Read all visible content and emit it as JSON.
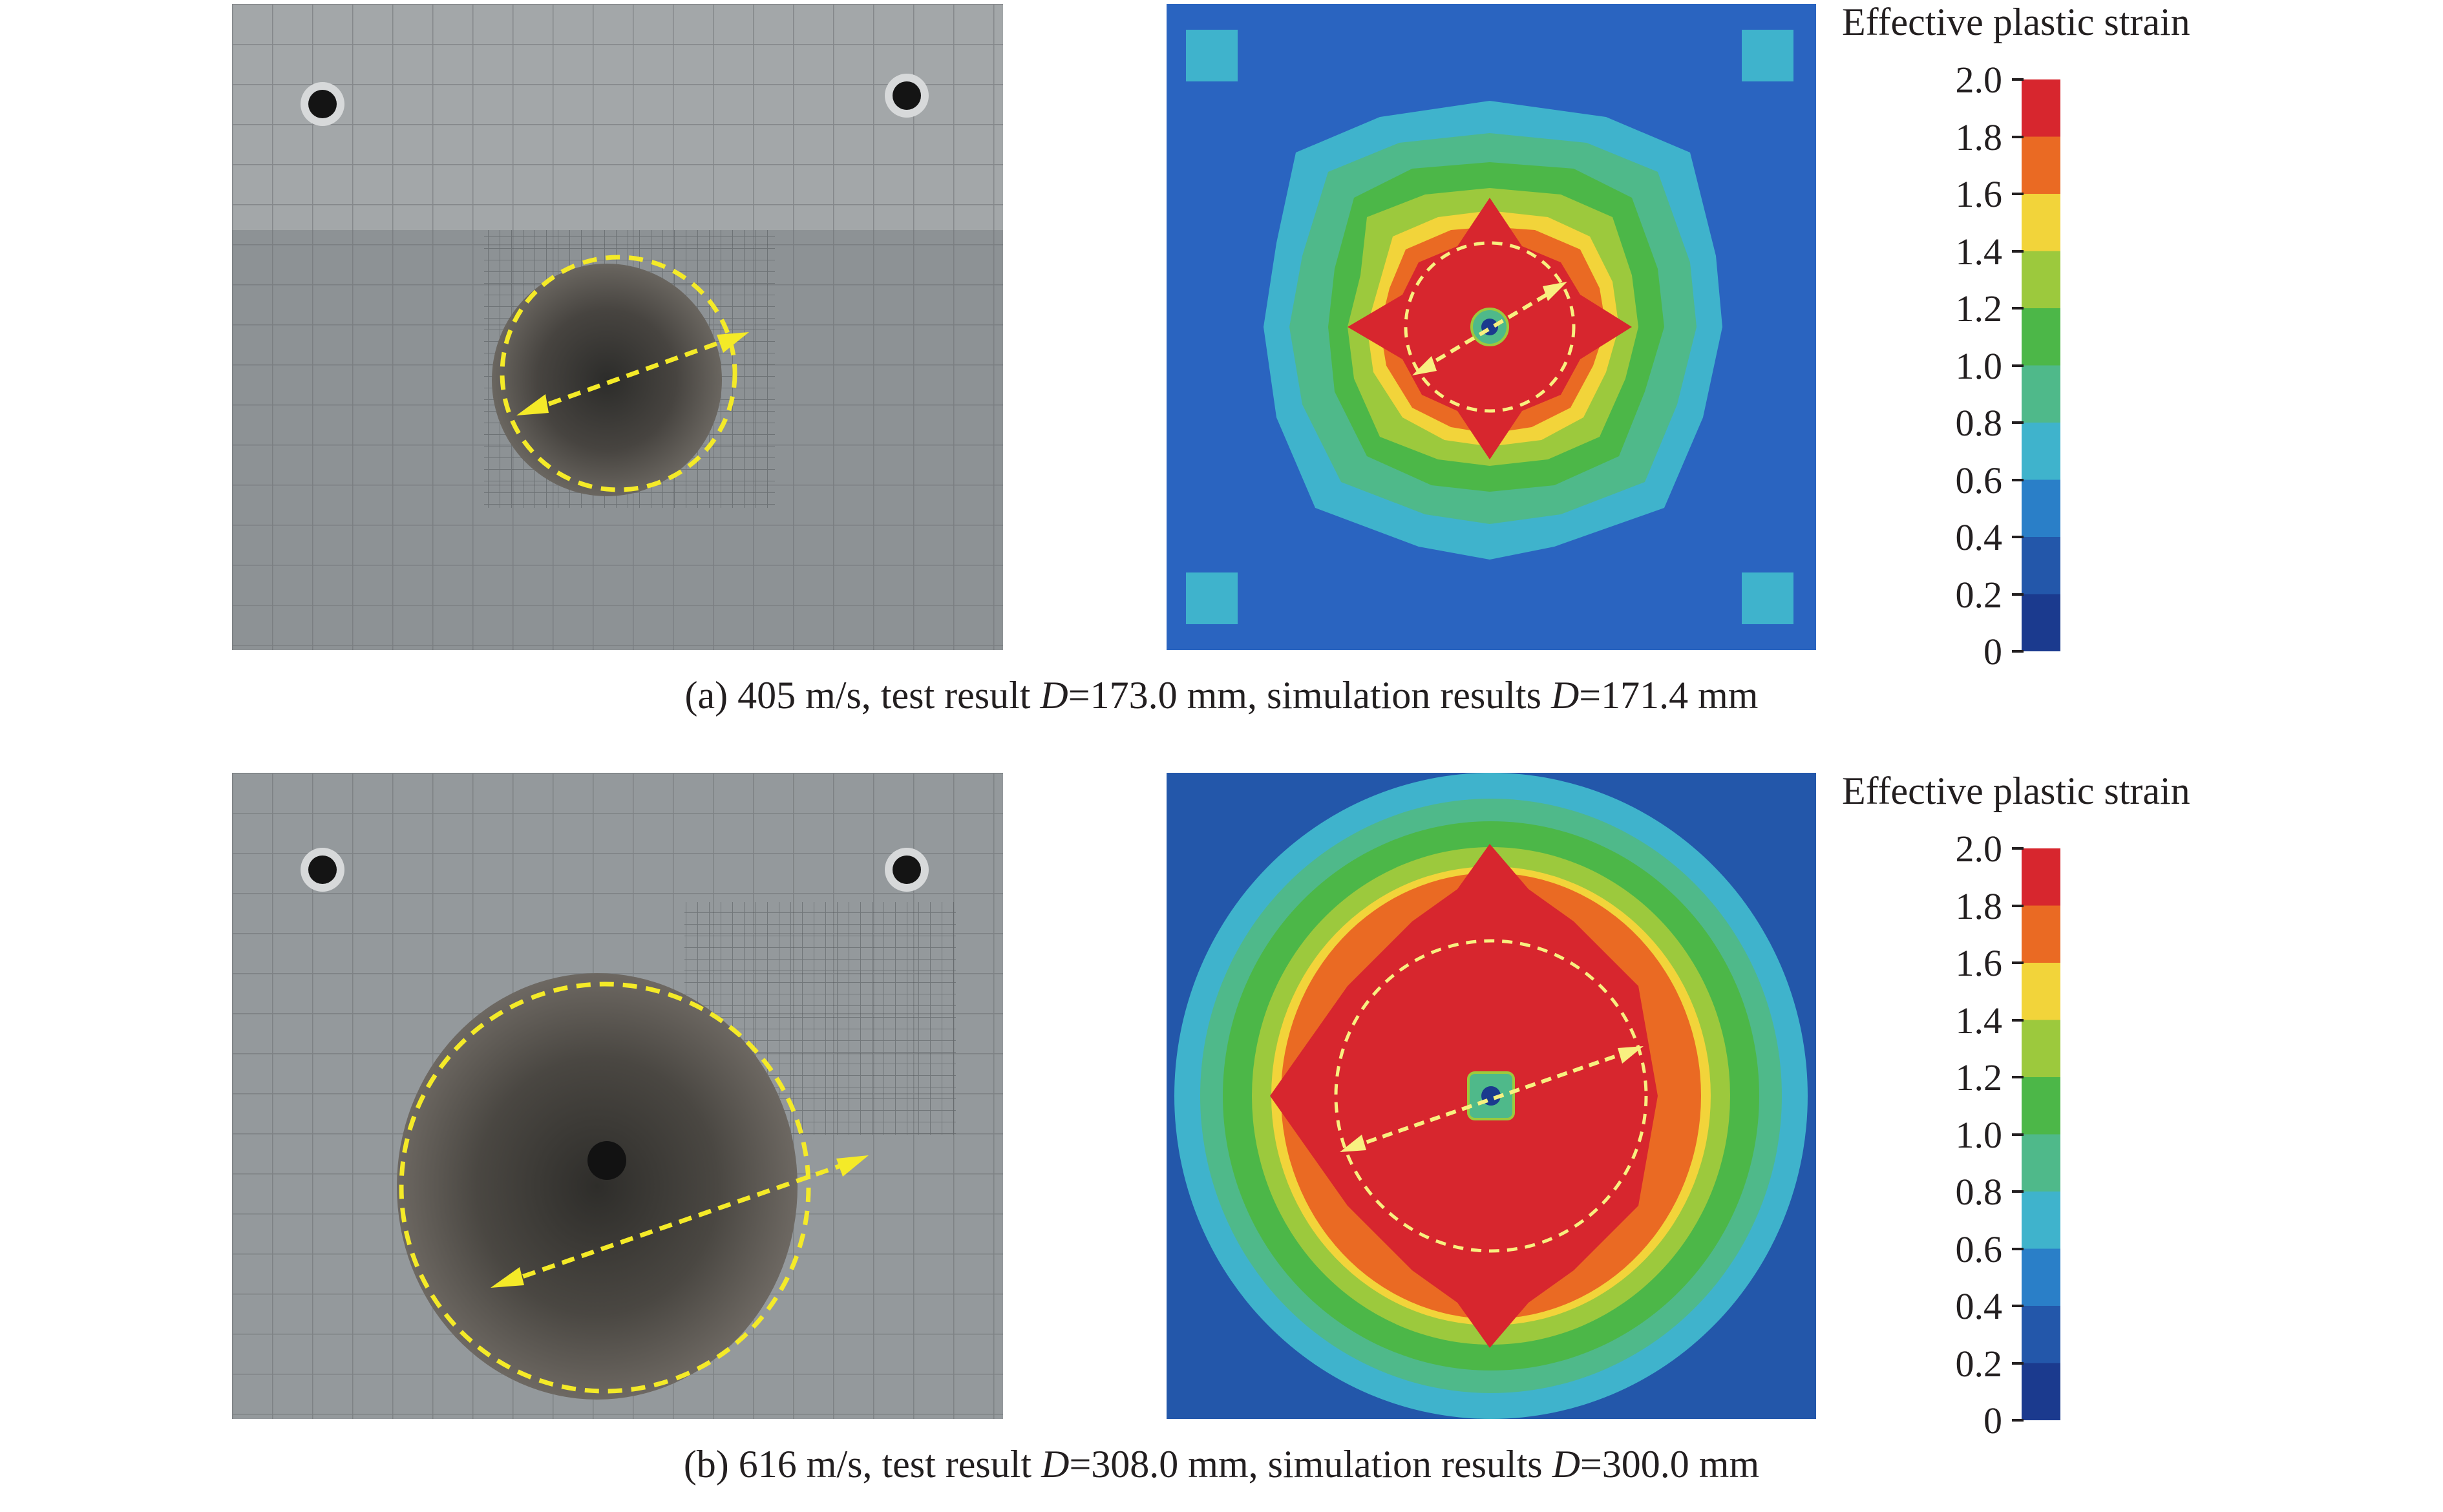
{
  "panels": [
    {
      "id": "a",
      "legend": {
        "title": "Effective plastic strain",
        "ticks": [
          "2.0",
          "1.8",
          "1.6",
          "1.4",
          "1.2",
          "1.0",
          "0.8",
          "0.6",
          "0.4",
          "0.2",
          "0"
        ],
        "colors": [
          "#d7262e",
          "#ea6a23",
          "#f2d43a",
          "#9cc93d",
          "#4cb748",
          "#4fb98a",
          "#3fb3cc",
          "#2a7fc8",
          "#2357aa",
          "#1b3a8e"
        ]
      },
      "caption": {
        "prefix": "(a) 405 m/s, test result ",
        "d_label_1": "D",
        "value_1": "=173.0 mm, simulation results ",
        "d_label_2": "D",
        "value_2": "=171.4 mm"
      }
    },
    {
      "id": "b",
      "legend": {
        "title": "Effective plastic strain",
        "ticks": [
          "2.0",
          "1.8",
          "1.6",
          "1.4",
          "1.2",
          "1.0",
          "0.8",
          "0.6",
          "0.4",
          "0.2",
          "0"
        ],
        "colors": [
          "#d7262e",
          "#ea6a23",
          "#f2d43a",
          "#9cc93d",
          "#4cb748",
          "#4fb98a",
          "#3fb3cc",
          "#2a7fc8",
          "#2357aa",
          "#1b3a8e"
        ]
      },
      "caption": {
        "prefix": "(b) 616 m/s, test result ",
        "d_label_1": "D",
        "value_1": "=308.0 mm, simulation results ",
        "d_label_2": "D",
        "value_2": "=300.0 mm"
      }
    }
  ]
}
